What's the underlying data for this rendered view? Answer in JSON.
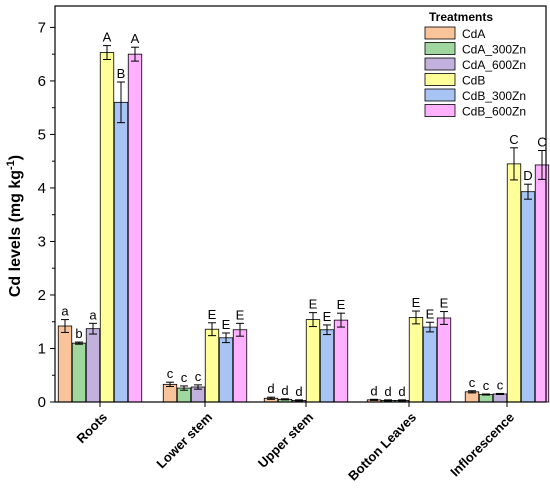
{
  "chart_data": {
    "type": "bar",
    "ylabel_main": "Cd levels (mg kg",
    "ylabel_sup": "-1",
    "ylabel_close": ")",
    "ylim": [
      0,
      7.4
    ],
    "yticks": [
      "0",
      "1",
      "2",
      "3",
      "4",
      "5",
      "6",
      "7"
    ],
    "grid": false,
    "legend": {
      "title": "Treatments",
      "placement": "top-right"
    },
    "categories": [
      "Roots",
      "Lower stem",
      "Upper stem",
      "Botton Leaves",
      "Inflorescence"
    ],
    "series": [
      {
        "name": "CdA",
        "color": "#f9c49a",
        "values": [
          1.42,
          0.33,
          0.07,
          0.04,
          0.19
        ],
        "errors": [
          0.12,
          0.04,
          0.02,
          0.01,
          0.02
        ],
        "letters": [
          "a",
          "c",
          "d",
          "d",
          "c"
        ]
      },
      {
        "name": "CdA_300Zn",
        "color": "#9fd79f",
        "values": [
          1.1,
          0.26,
          0.05,
          0.03,
          0.14
        ],
        "errors": [
          0.02,
          0.04,
          0.01,
          0.01,
          0.01
        ],
        "letters": [
          "b",
          "c",
          "d",
          "d",
          "c"
        ]
      },
      {
        "name": "CdA_600Zn",
        "color": "#c1b1dc",
        "values": [
          1.37,
          0.28,
          0.03,
          0.03,
          0.15
        ],
        "errors": [
          0.1,
          0.04,
          0.01,
          0.01,
          0.01
        ],
        "letters": [
          "a",
          "c",
          "d",
          "d",
          "c"
        ]
      },
      {
        "name": "CdB",
        "color": "#ffff99",
        "values": [
          6.53,
          1.36,
          1.54,
          1.58,
          4.45
        ],
        "errors": [
          0.13,
          0.12,
          0.13,
          0.12,
          0.3
        ],
        "letters": [
          "A",
          "E",
          "E",
          "E",
          "C"
        ]
      },
      {
        "name": "CdB_300Zn",
        "color": "#a8c4f5",
        "values": [
          5.6,
          1.2,
          1.35,
          1.4,
          3.93
        ],
        "errors": [
          0.38,
          0.09,
          0.09,
          0.09,
          0.14
        ],
        "letters": [
          "B",
          "E",
          "E",
          "E",
          "D"
        ]
      },
      {
        "name": "CdB_600Zn",
        "color": "#ffb0ff",
        "values": [
          6.5,
          1.35,
          1.53,
          1.57,
          4.43
        ],
        "errors": [
          0.13,
          0.12,
          0.13,
          0.12,
          0.27
        ],
        "letters": [
          "A",
          "E",
          "E",
          "E",
          "C"
        ]
      }
    ]
  }
}
